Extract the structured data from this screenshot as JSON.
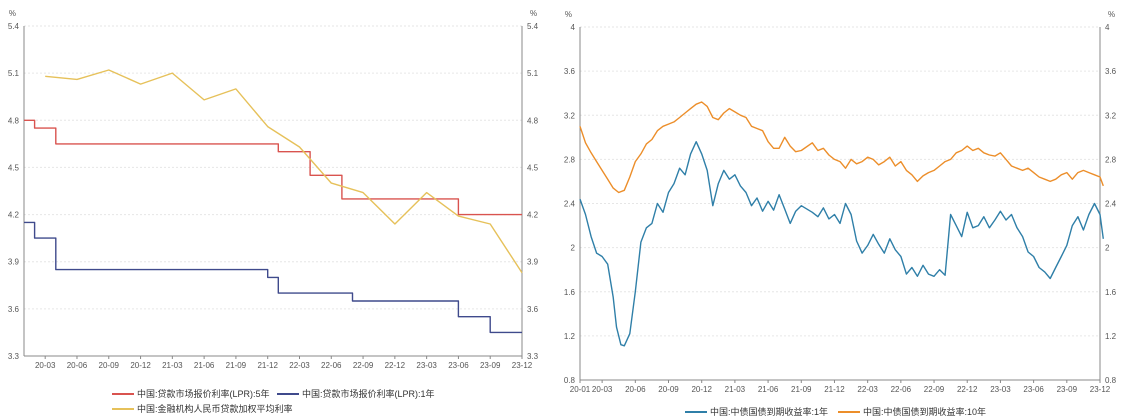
{
  "chart_data": [
    {
      "type": "line",
      "y_unit_left": "%",
      "y_unit_right": "%",
      "ylim": [
        3.3,
        5.4
      ],
      "yticks": [
        "3.3",
        "3.6",
        "3.9",
        "4.2",
        "4.5",
        "4.8",
        "5.1",
        "5.4"
      ],
      "xlim": [
        0,
        47
      ],
      "xticks": [
        {
          "i": 2,
          "label": "20-03"
        },
        {
          "i": 5,
          "label": "20-06"
        },
        {
          "i": 8,
          "label": "20-09"
        },
        {
          "i": 11,
          "label": "20-12"
        },
        {
          "i": 14,
          "label": "21-03"
        },
        {
          "i": 17,
          "label": "21-06"
        },
        {
          "i": 20,
          "label": "21-09"
        },
        {
          "i": 23,
          "label": "21-12"
        },
        {
          "i": 26,
          "label": "22-03"
        },
        {
          "i": 29,
          "label": "22-06"
        },
        {
          "i": 32,
          "label": "22-09"
        },
        {
          "i": 35,
          "label": "22-12"
        },
        {
          "i": 38,
          "label": "23-03"
        },
        {
          "i": 41,
          "label": "23-06"
        },
        {
          "i": 44,
          "label": "23-09"
        },
        {
          "i": 47,
          "label": "23-12"
        }
      ],
      "grid": true,
      "legend_position": "bottom",
      "series": [
        {
          "name": "中国:贷款市场报价利率(LPR):5年",
          "color": "#d9534f",
          "step": true,
          "points": [
            [
              0,
              4.8
            ],
            [
              1,
              4.75
            ],
            [
              3,
              4.65
            ],
            [
              23,
              4.65
            ],
            [
              24,
              4.6
            ],
            [
              27,
              4.6
            ],
            [
              27,
              4.45
            ],
            [
              29,
              4.45
            ],
            [
              30,
              4.3
            ],
            [
              40,
              4.3
            ],
            [
              41,
              4.2
            ],
            [
              47,
              4.2
            ]
          ]
        },
        {
          "name": "中国:贷款市场报价利率(LPR):1年",
          "color": "#3f4a8c",
          "step": true,
          "points": [
            [
              0,
              4.15
            ],
            [
              1,
              4.05
            ],
            [
              2,
              4.05
            ],
            [
              3,
              3.85
            ],
            [
              22,
              3.85
            ],
            [
              23,
              3.8
            ],
            [
              24,
              3.7
            ],
            [
              30,
              3.7
            ],
            [
              31,
              3.65
            ],
            [
              40,
              3.65
            ],
            [
              41,
              3.55
            ],
            [
              43,
              3.55
            ],
            [
              44,
              3.45
            ],
            [
              47,
              3.45
            ]
          ]
        },
        {
          "name": "中国:金融机构人民币贷款加权平均利率",
          "color": "#e6c15a",
          "step": false,
          "points": [
            [
              2,
              5.08
            ],
            [
              5,
              5.06
            ],
            [
              8,
              5.12
            ],
            [
              11,
              5.03
            ],
            [
              14,
              5.1
            ],
            [
              17,
              4.93
            ],
            [
              20,
              5.0
            ],
            [
              23,
              4.76
            ],
            [
              26,
              4.63
            ],
            [
              29,
              4.4
            ],
            [
              32,
              4.34
            ],
            [
              35,
              4.14
            ],
            [
              38,
              4.34
            ],
            [
              41,
              4.19
            ],
            [
              44,
              4.14
            ],
            [
              47,
              3.83
            ]
          ]
        }
      ]
    },
    {
      "type": "line",
      "y_unit_left": "%",
      "y_unit_right": "%",
      "ylim": [
        0.8,
        4.0
      ],
      "yticks": [
        "0.8",
        "1.2",
        "1.6",
        "2",
        "2.4",
        "2.8",
        "3.2",
        "3.6",
        "4"
      ],
      "xlim": [
        0,
        47
      ],
      "xticks": [
        {
          "i": 0,
          "label": "20-01"
        },
        {
          "i": 2,
          "label": "20-03"
        },
        {
          "i": 5,
          "label": "20-06"
        },
        {
          "i": 8,
          "label": "20-09"
        },
        {
          "i": 11,
          "label": "20-12"
        },
        {
          "i": 14,
          "label": "21-03"
        },
        {
          "i": 17,
          "label": "21-06"
        },
        {
          "i": 20,
          "label": "21-09"
        },
        {
          "i": 23,
          "label": "21-12"
        },
        {
          "i": 26,
          "label": "22-03"
        },
        {
          "i": 29,
          "label": "22-06"
        },
        {
          "i": 32,
          "label": "22-09"
        },
        {
          "i": 35,
          "label": "22-12"
        },
        {
          "i": 38,
          "label": "23-03"
        },
        {
          "i": 41,
          "label": "23-06"
        },
        {
          "i": 44,
          "label": "23-09"
        },
        {
          "i": 47,
          "label": "23-12"
        }
      ],
      "grid": true,
      "legend_position": "bottom",
      "series": [
        {
          "name": "中国:中债国债到期收益率:1年",
          "color": "#2f7fa8",
          "step": false,
          "points": [
            [
              0,
              2.44
            ],
            [
              0.5,
              2.3
            ],
            [
              1,
              2.1
            ],
            [
              1.5,
              1.95
            ],
            [
              2,
              1.92
            ],
            [
              2.5,
              1.85
            ],
            [
              3,
              1.55
            ],
            [
              3.3,
              1.28
            ],
            [
              3.7,
              1.12
            ],
            [
              4,
              1.11
            ],
            [
              4.5,
              1.22
            ],
            [
              5,
              1.6
            ],
            [
              5.5,
              2.05
            ],
            [
              6,
              2.18
            ],
            [
              6.5,
              2.22
            ],
            [
              7,
              2.4
            ],
            [
              7.5,
              2.32
            ],
            [
              8,
              2.5
            ],
            [
              8.5,
              2.58
            ],
            [
              9,
              2.72
            ],
            [
              9.5,
              2.66
            ],
            [
              10,
              2.85
            ],
            [
              10.5,
              2.96
            ],
            [
              11,
              2.85
            ],
            [
              11.5,
              2.7
            ],
            [
              12,
              2.38
            ],
            [
              12.5,
              2.58
            ],
            [
              13,
              2.7
            ],
            [
              13.5,
              2.62
            ],
            [
              14,
              2.66
            ],
            [
              14.5,
              2.56
            ],
            [
              15,
              2.5
            ],
            [
              15.5,
              2.38
            ],
            [
              16,
              2.45
            ],
            [
              16.5,
              2.33
            ],
            [
              17,
              2.42
            ],
            [
              17.5,
              2.34
            ],
            [
              18,
              2.48
            ],
            [
              18.5,
              2.35
            ],
            [
              19,
              2.22
            ],
            [
              19.5,
              2.33
            ],
            [
              20,
              2.38
            ],
            [
              21,
              2.32
            ],
            [
              21.5,
              2.28
            ],
            [
              22,
              2.36
            ],
            [
              22.5,
              2.26
            ],
            [
              23,
              2.3
            ],
            [
              23.5,
              2.22
            ],
            [
              24,
              2.4
            ],
            [
              24.5,
              2.3
            ],
            [
              25,
              2.06
            ],
            [
              25.5,
              1.95
            ],
            [
              26,
              2.02
            ],
            [
              26.5,
              2.12
            ],
            [
              27,
              2.03
            ],
            [
              27.5,
              1.95
            ],
            [
              28,
              2.08
            ],
            [
              28.5,
              1.98
            ],
            [
              29,
              1.92
            ],
            [
              29.5,
              1.76
            ],
            [
              30,
              1.82
            ],
            [
              30.5,
              1.74
            ],
            [
              31,
              1.84
            ],
            [
              31.5,
              1.76
            ],
            [
              32,
              1.74
            ],
            [
              32.5,
              1.8
            ],
            [
              33,
              1.75
            ],
            [
              33.5,
              2.3
            ],
            [
              34,
              2.2
            ],
            [
              34.5,
              2.1
            ],
            [
              35,
              2.32
            ],
            [
              35.5,
              2.18
            ],
            [
              36,
              2.2
            ],
            [
              36.5,
              2.28
            ],
            [
              37,
              2.18
            ],
            [
              37.5,
              2.25
            ],
            [
              38,
              2.33
            ],
            [
              38.5,
              2.25
            ],
            [
              39,
              2.3
            ],
            [
              39.5,
              2.18
            ],
            [
              40,
              2.1
            ],
            [
              40.5,
              1.96
            ],
            [
              41,
              1.92
            ],
            [
              41.5,
              1.82
            ],
            [
              42,
              1.78
            ],
            [
              42.5,
              1.72
            ],
            [
              43,
              1.82
            ],
            [
              43.5,
              1.92
            ],
            [
              44,
              2.02
            ],
            [
              44.5,
              2.2
            ],
            [
              45,
              2.28
            ],
            [
              45.5,
              2.16
            ],
            [
              46,
              2.3
            ],
            [
              46.5,
              2.4
            ],
            [
              47,
              2.3
            ],
            [
              47.3,
              2.08
            ]
          ]
        },
        {
          "name": "中国:中债国债到期收益率:10年",
          "color": "#ec8e2a",
          "step": false,
          "points": [
            [
              0,
              3.1
            ],
            [
              0.5,
              2.95
            ],
            [
              1,
              2.86
            ],
            [
              1.5,
              2.78
            ],
            [
              2,
              2.7
            ],
            [
              2.5,
              2.62
            ],
            [
              3,
              2.54
            ],
            [
              3.5,
              2.5
            ],
            [
              4,
              2.52
            ],
            [
              4.5,
              2.64
            ],
            [
              5,
              2.78
            ],
            [
              5.5,
              2.85
            ],
            [
              6,
              2.94
            ],
            [
              6.5,
              2.98
            ],
            [
              7,
              3.06
            ],
            [
              7.5,
              3.1
            ],
            [
              8,
              3.12
            ],
            [
              8.5,
              3.14
            ],
            [
              9,
              3.18
            ],
            [
              9.5,
              3.22
            ],
            [
              10,
              3.26
            ],
            [
              10.5,
              3.3
            ],
            [
              11,
              3.32
            ],
            [
              11.5,
              3.28
            ],
            [
              12,
              3.18
            ],
            [
              12.5,
              3.16
            ],
            [
              13,
              3.22
            ],
            [
              13.5,
              3.26
            ],
            [
              14,
              3.23
            ],
            [
              14.5,
              3.2
            ],
            [
              15,
              3.18
            ],
            [
              15.5,
              3.1
            ],
            [
              16,
              3.08
            ],
            [
              16.5,
              3.06
            ],
            [
              17,
              2.96
            ],
            [
              17.5,
              2.9
            ],
            [
              18,
              2.9
            ],
            [
              18.5,
              3.0
            ],
            [
              19,
              2.92
            ],
            [
              19.5,
              2.87
            ],
            [
              20,
              2.88
            ],
            [
              21,
              2.95
            ],
            [
              21.5,
              2.88
            ],
            [
              22,
              2.9
            ],
            [
              22.5,
              2.84
            ],
            [
              23,
              2.8
            ],
            [
              23.5,
              2.78
            ],
            [
              24,
              2.72
            ],
            [
              24.5,
              2.8
            ],
            [
              25,
              2.76
            ],
            [
              25.5,
              2.78
            ],
            [
              26,
              2.82
            ],
            [
              26.5,
              2.8
            ],
            [
              27,
              2.75
            ],
            [
              27.5,
              2.78
            ],
            [
              28,
              2.82
            ],
            [
              28.5,
              2.74
            ],
            [
              29,
              2.78
            ],
            [
              29.5,
              2.7
            ],
            [
              30,
              2.66
            ],
            [
              30.5,
              2.6
            ],
            [
              31,
              2.65
            ],
            [
              31.5,
              2.68
            ],
            [
              32,
              2.7
            ],
            [
              32.5,
              2.74
            ],
            [
              33,
              2.78
            ],
            [
              33.5,
              2.8
            ],
            [
              34,
              2.86
            ],
            [
              34.5,
              2.88
            ],
            [
              35,
              2.92
            ],
            [
              35.5,
              2.88
            ],
            [
              36,
              2.9
            ],
            [
              36.5,
              2.86
            ],
            [
              37,
              2.84
            ],
            [
              37.5,
              2.83
            ],
            [
              38,
              2.86
            ],
            [
              38.5,
              2.8
            ],
            [
              39,
              2.74
            ],
            [
              39.5,
              2.72
            ],
            [
              40,
              2.7
            ],
            [
              40.5,
              2.72
            ],
            [
              41,
              2.68
            ],
            [
              41.5,
              2.64
            ],
            [
              42,
              2.62
            ],
            [
              42.5,
              2.6
            ],
            [
              43,
              2.62
            ],
            [
              43.5,
              2.66
            ],
            [
              44,
              2.68
            ],
            [
              44.5,
              2.62
            ],
            [
              45,
              2.68
            ],
            [
              45.5,
              2.7
            ],
            [
              46,
              2.68
            ],
            [
              46.5,
              2.66
            ],
            [
              47,
              2.64
            ],
            [
              47.3,
              2.56
            ]
          ]
        }
      ]
    }
  ]
}
